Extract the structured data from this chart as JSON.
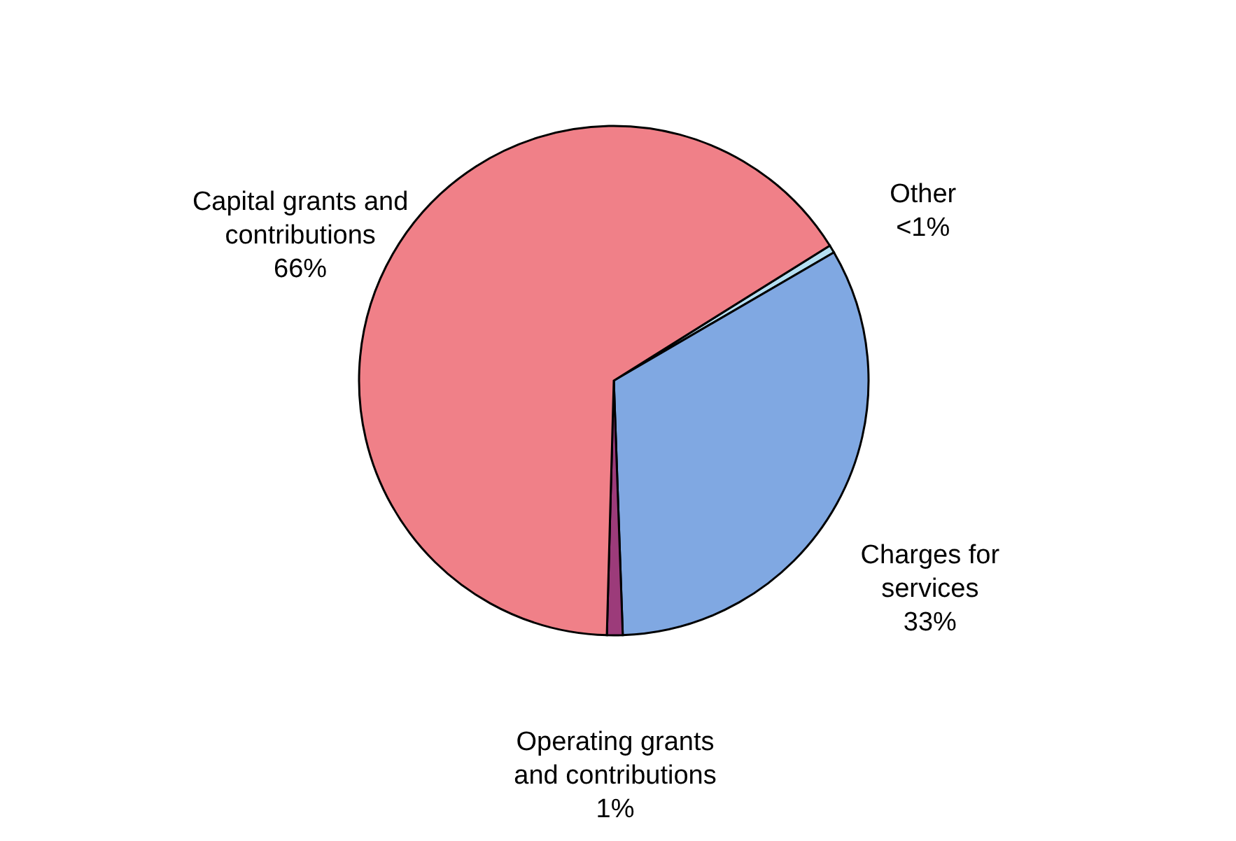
{
  "chart_data": {
    "type": "pie",
    "categories": [
      "Other",
      "Charges for services",
      "Operating grants and contributions",
      "Capital grants and contributions"
    ],
    "values": [
      0.5,
      33,
      1,
      66
    ],
    "value_labels": [
      "<1%",
      "33%",
      "1%",
      "66%"
    ],
    "colors": [
      "#b5dff2",
      "#80a8e2",
      "#9c3b7a",
      "#f08088"
    ]
  }
}
